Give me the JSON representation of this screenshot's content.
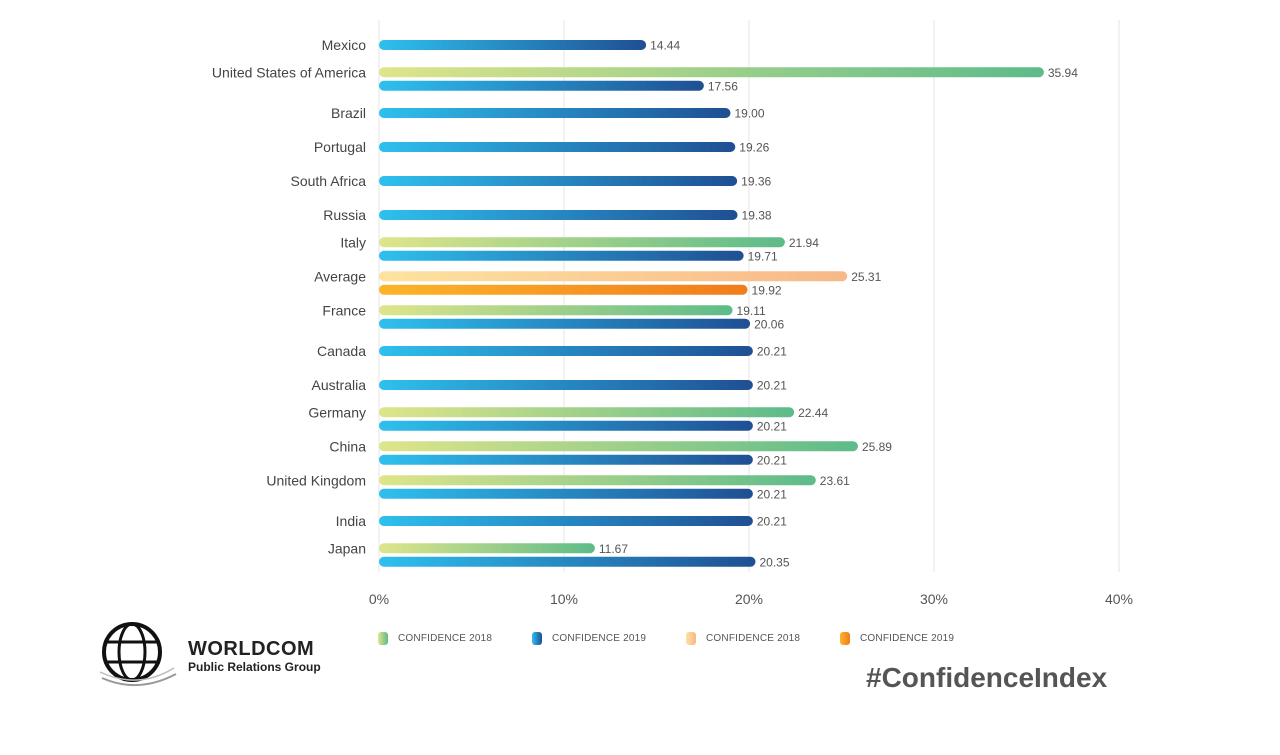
{
  "chart_data": {
    "type": "bar",
    "orientation": "horizontal",
    "title": "",
    "xlabel": "",
    "ylabel": "",
    "xlim": [
      0,
      40
    ],
    "x_ticks": [
      "0%",
      "10%",
      "20%",
      "30%",
      "40%"
    ],
    "grid": true,
    "categories": [
      "Mexico",
      "United States of America",
      "Brazil",
      "Portugal",
      "South Africa",
      "Russia",
      "Italy",
      "Average",
      "France",
      "Canada",
      "Australia",
      "Germany",
      "China",
      "United Kingdom",
      "India",
      "Japan"
    ],
    "series": [
      {
        "name": "CONFIDENCE 2018",
        "values": [
          null,
          35.94,
          null,
          null,
          null,
          null,
          21.94,
          null,
          19.11,
          null,
          null,
          22.44,
          25.89,
          23.61,
          null,
          11.67
        ],
        "labels": [
          null,
          "35.94",
          null,
          null,
          null,
          null,
          "21.94",
          null,
          "19.11",
          null,
          null,
          "22.44",
          "25.89",
          "23.61",
          null,
          "11.67"
        ]
      },
      {
        "name": "CONFIDENCE 2019",
        "values": [
          14.44,
          17.56,
          19.0,
          19.26,
          19.36,
          19.38,
          19.71,
          null,
          20.06,
          20.21,
          20.21,
          20.21,
          20.21,
          20.21,
          20.21,
          20.35
        ],
        "labels": [
          "14.44",
          "17.56",
          "19.00",
          "19.26",
          "19.36",
          "19.38",
          "19.71",
          null,
          "20.06",
          "20.21",
          "20.21",
          "20.21",
          "20.21",
          "20.21",
          "20.21",
          "20.35"
        ]
      },
      {
        "name": "CONFIDENCE 2018",
        "values": [
          null,
          null,
          null,
          null,
          null,
          null,
          null,
          25.31,
          null,
          null,
          null,
          null,
          null,
          null,
          null,
          null
        ],
        "labels": [
          null,
          null,
          null,
          null,
          null,
          null,
          null,
          "25.31",
          null,
          null,
          null,
          null,
          null,
          null,
          null,
          null
        ]
      },
      {
        "name": "CONFIDENCE 2019",
        "values": [
          null,
          null,
          null,
          null,
          null,
          null,
          null,
          19.92,
          null,
          null,
          null,
          null,
          null,
          null,
          null,
          null
        ],
        "labels": [
          null,
          null,
          null,
          null,
          null,
          null,
          null,
          "19.92",
          null,
          null,
          null,
          null,
          null,
          null,
          null,
          null
        ]
      }
    ],
    "legend": [
      {
        "label": "CONFIDENCE 2018",
        "color_from": "#dfe58a",
        "color_to": "#5dbb8a"
      },
      {
        "label": "CONFIDENCE 2019",
        "color_from": "#2ec0ee",
        "color_to": "#1f4f93"
      },
      {
        "label": "CONFIDENCE 2018",
        "color_from": "#fde3a0",
        "color_to": "#f8b889"
      },
      {
        "label": "CONFIDENCE 2019",
        "color_from": "#fbb52a",
        "color_to": "#f17c1c"
      }
    ]
  },
  "logo": {
    "name": "WORLDCOM",
    "subtitle": "Public Relations Group"
  },
  "hashtag": "#ConfidenceIndex"
}
